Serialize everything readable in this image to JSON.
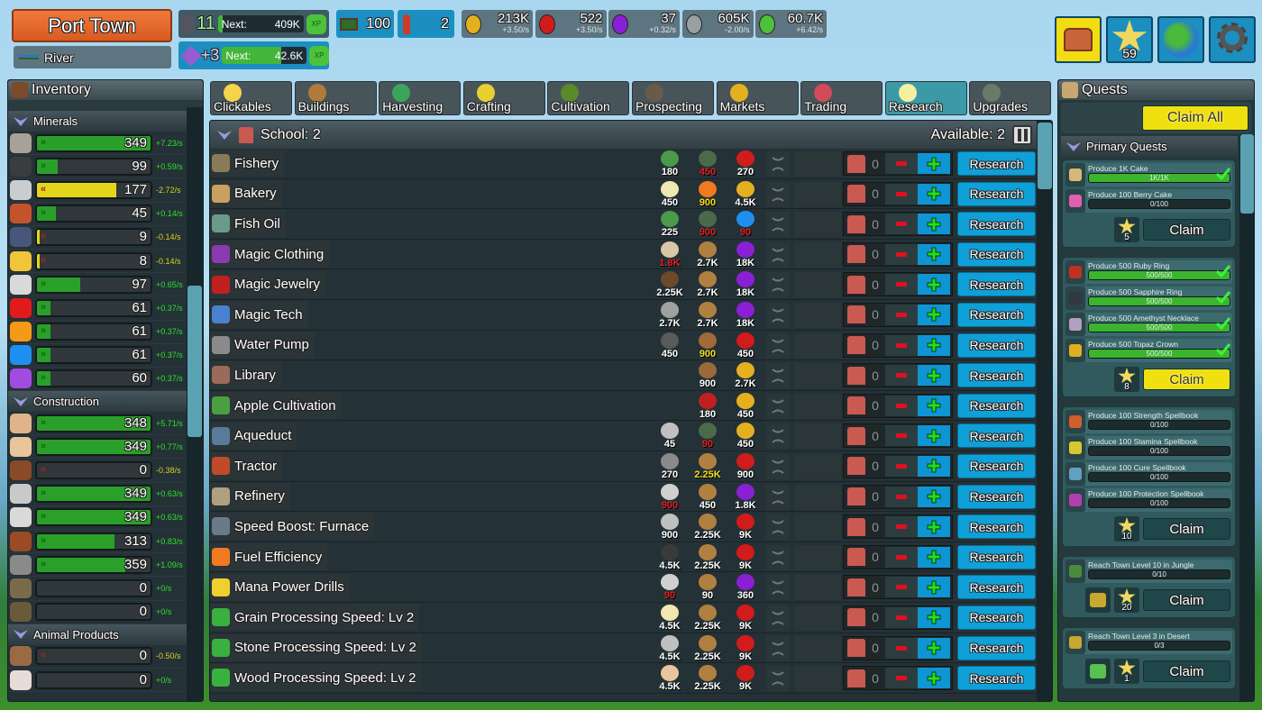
{
  "town": {
    "name": "Port Town",
    "biome": "River"
  },
  "level": {
    "value": "11",
    "next_label": "Next:",
    "next_value": "409K",
    "xp_label": "XP",
    "progress": 0.05
  },
  "prestige": {
    "value": "+3",
    "next_label": "Next:",
    "next_value": "42.6K",
    "xp_label": "XP",
    "progress": 0.7
  },
  "land": {
    "value": "100",
    "icon": "land-icon"
  },
  "population": {
    "value": "2",
    "icon": "worker-icon"
  },
  "currencies": [
    {
      "name": "gold",
      "value": "213K",
      "rate": "+3.50/s",
      "color": "#e5b020"
    },
    {
      "name": "ruby",
      "value": "522",
      "rate": "+3.50/s",
      "color": "#d21b1b"
    },
    {
      "name": "amethyst",
      "value": "37",
      "rate": "+0.32/s",
      "color": "#8a1fd6"
    },
    {
      "name": "silver",
      "value": "605K",
      "rate": "-2.00/s",
      "color": "#9aa0a2"
    },
    {
      "name": "xp",
      "value": "60.7K",
      "rate": "+6.42/s",
      "color": "#4cc23a"
    }
  ],
  "top_buttons": [
    {
      "name": "treasure-chest",
      "color": "#f2dc12"
    },
    {
      "name": "star",
      "badge": "59",
      "color": "#1c8fc0"
    },
    {
      "name": "world-map",
      "color": "#1c8fc0"
    },
    {
      "name": "settings-gear",
      "color": "#1c8fc0"
    }
  ],
  "inventory": {
    "title": "Inventory",
    "sections": [
      {
        "title": "Minerals",
        "items": [
          {
            "value": "349",
            "rate": "+7.23/s",
            "fill": 1.0,
            "trend": "up",
            "icon_color": "#a6a29a"
          },
          {
            "value": "99",
            "rate": "+0.59/s",
            "fill": 0.18,
            "trend": "up",
            "icon_color": "#3a3d40"
          },
          {
            "value": "177",
            "rate": "-2.72/s",
            "fill": 0.7,
            "trend": "down",
            "icon_color": "#c9cdd0"
          },
          {
            "value": "45",
            "rate": "+0.14/s",
            "fill": 0.17,
            "trend": "up",
            "icon_color": "#c4532c"
          },
          {
            "value": "9",
            "rate": "-0.14/s",
            "fill": 0.02,
            "trend": "down",
            "icon_color": "#47567a"
          },
          {
            "value": "8",
            "rate": "-0.14/s",
            "fill": 0.02,
            "trend": "down",
            "icon_color": "#f1c537"
          },
          {
            "value": "97",
            "rate": "+0.65/s",
            "fill": 0.38,
            "trend": "up",
            "icon_color": "#d9d9d9"
          },
          {
            "value": "61",
            "rate": "+0.37/s",
            "fill": 0.12,
            "trend": "up",
            "icon_color": "#e11b1b"
          },
          {
            "value": "61",
            "rate": "+0.37/s",
            "fill": 0.12,
            "trend": "up",
            "icon_color": "#f59a16"
          },
          {
            "value": "61",
            "rate": "+0.37/s",
            "fill": 0.12,
            "trend": "up",
            "icon_color": "#1e8ff0"
          },
          {
            "value": "60",
            "rate": "+0.37/s",
            "fill": 0.12,
            "trend": "up",
            "icon_color": "#a24be0"
          }
        ]
      },
      {
        "title": "Construction",
        "items": [
          {
            "value": "348",
            "rate": "+5.71/s",
            "fill": 1.0,
            "trend": "up",
            "icon_color": "#e0b48a"
          },
          {
            "value": "349",
            "rate": "+0.77/s",
            "fill": 1.0,
            "trend": "up",
            "icon_color": "#e8c59a"
          },
          {
            "value": "0",
            "rate": "-0.38/s",
            "fill": 0,
            "trend": "down",
            "icon_color": "#8a4a2a"
          },
          {
            "value": "349",
            "rate": "+0.63/s",
            "fill": 1.0,
            "trend": "up",
            "icon_color": "#c9c9c9"
          },
          {
            "value": "349",
            "rate": "+0.63/s",
            "fill": 1.0,
            "trend": "up",
            "icon_color": "#d9d9d9"
          },
          {
            "value": "313",
            "rate": "+0.83/s",
            "fill": 0.68,
            "trend": "up",
            "icon_color": "#9a4a25"
          },
          {
            "value": "359",
            "rate": "+1.09/s",
            "fill": 0.78,
            "trend": "up",
            "icon_color": "#8a8a8a"
          },
          {
            "value": "0",
            "rate": "+0/s",
            "fill": 0,
            "trend": "none",
            "icon_color": "#7a6a4a"
          },
          {
            "value": "0",
            "rate": "+0/s",
            "fill": 0,
            "trend": "none",
            "icon_color": "#6a5a3a"
          }
        ]
      },
      {
        "title": "Animal Products",
        "items": [
          {
            "value": "0",
            "rate": "-0.50/s",
            "fill": 0,
            "trend": "down",
            "icon_color": "#9a6a45"
          },
          {
            "value": "0",
            "rate": "+0/s",
            "fill": 0,
            "trend": "none",
            "icon_color": "#e8dcd8"
          }
        ]
      }
    ]
  },
  "tabs": [
    {
      "label": "Clickables",
      "color": "#f5d34a"
    },
    {
      "label": "Buildings",
      "color": "#b07a3a"
    },
    {
      "label": "Harvesting",
      "color": "#3aa55a"
    },
    {
      "label": "Crafting",
      "color": "#e8d030"
    },
    {
      "label": "Cultivation",
      "color": "#5a8a2a"
    },
    {
      "label": "Prospecting",
      "color": "#6a5a4a"
    },
    {
      "label": "Markets",
      "color": "#e5b020"
    },
    {
      "label": "Trading",
      "color": "#d04a5a"
    },
    {
      "label": "Research",
      "color": "#f5f0a0",
      "active": true
    },
    {
      "label": "Upgrades",
      "color": "#6a7a6a"
    }
  ],
  "school": {
    "title": "School: 2",
    "available": "Available: 2",
    "research_label": "Research",
    "count": "0"
  },
  "research": [
    {
      "name": "Fishery",
      "icon_color": "#8a7a5a",
      "costs": [
        [
          "180",
          "w",
          "#4a9a4a"
        ],
        [
          "450",
          "r",
          "#4a6a4a"
        ],
        [
          "270",
          "w",
          "#d21b1b"
        ]
      ]
    },
    {
      "name": "Bakery",
      "icon_color": "#c9a060",
      "costs": [
        [
          "450",
          "w",
          "#f0e8b0"
        ],
        [
          "900",
          "y",
          "#f07a20"
        ],
        [
          "4.5K",
          "w",
          "#e5b020"
        ]
      ]
    },
    {
      "name": "Fish Oil",
      "icon_color": "#6a9a8a",
      "costs": [
        [
          "225",
          "w",
          "#4a9a4a"
        ],
        [
          "900",
          "r",
          "#4a6a4a"
        ],
        [
          "90",
          "r",
          "#1e8ff0"
        ]
      ]
    },
    {
      "name": "Magic Clothing",
      "icon_color": "#8a3ab0",
      "costs": [
        [
          "1.8K",
          "r",
          "#d8c8a8"
        ],
        [
          "2.7K",
          "w",
          "#b08040"
        ],
        [
          "18K",
          "w",
          "#8a1fd6"
        ]
      ]
    },
    {
      "name": "Magic Jewelry",
      "icon_color": "#c02020",
      "costs": [
        [
          "2.25K",
          "w",
          "#6a4a2a"
        ],
        [
          "2.7K",
          "w",
          "#b08040"
        ],
        [
          "18K",
          "w",
          "#8a1fd6"
        ]
      ]
    },
    {
      "name": "Magic Tech",
      "icon_color": "#4a80d0",
      "costs": [
        [
          "2.7K",
          "w",
          "#a0a0a0"
        ],
        [
          "2.7K",
          "w",
          "#b08040"
        ],
        [
          "18K",
          "w",
          "#8a1fd6"
        ]
      ]
    },
    {
      "name": "Water Pump",
      "icon_color": "#8a8a8a",
      "costs": [
        [
          "450",
          "w",
          "#5a5a5a"
        ],
        [
          "900",
          "y",
          "#a06a3a"
        ],
        [
          "450",
          "w",
          "#d21b1b"
        ]
      ]
    },
    {
      "name": "Library",
      "icon_color": "#9a6a5a",
      "costs": [
        [
          "900",
          "w",
          "#9a6a3a"
        ],
        [
          "2.7K",
          "w",
          "#e5b020"
        ]
      ]
    },
    {
      "name": "Apple Cultivation",
      "icon_color": "#4aa040",
      "costs": [
        [
          "180",
          "w",
          "#c02020"
        ],
        [
          "450",
          "w",
          "#e5b020"
        ]
      ]
    },
    {
      "name": "Aqueduct",
      "icon_color": "#5a7a9a",
      "costs": [
        [
          "45",
          "w",
          "#c0c0c0"
        ],
        [
          "90",
          "r",
          "#4a6a4a"
        ],
        [
          "450",
          "w",
          "#e5b020"
        ]
      ]
    },
    {
      "name": "Tractor",
      "icon_color": "#c04a2a",
      "costs": [
        [
          "270",
          "w",
          "#8a8a8a"
        ],
        [
          "2.25K",
          "y",
          "#b08040"
        ],
        [
          "900",
          "w",
          "#d21b1b"
        ]
      ]
    },
    {
      "name": "Refinery",
      "icon_color": "#b0a080",
      "costs": [
        [
          "900",
          "r",
          "#d0d0d0"
        ],
        [
          "450",
          "w",
          "#b08040"
        ],
        [
          "1.8K",
          "w",
          "#8a1fd6"
        ]
      ]
    },
    {
      "name": "Speed Boost: Furnace",
      "icon_color": "#6a7a8a",
      "costs": [
        [
          "900",
          "w",
          "#c0c0c0"
        ],
        [
          "2.25K",
          "w",
          "#b08040"
        ],
        [
          "9K",
          "w",
          "#d21b1b"
        ]
      ]
    },
    {
      "name": "Fuel Efficiency",
      "icon_color": "#f07a20",
      "costs": [
        [
          "4.5K",
          "w",
          "#3a3a3a"
        ],
        [
          "2.25K",
          "w",
          "#b08040"
        ],
        [
          "9K",
          "w",
          "#d21b1b"
        ]
      ]
    },
    {
      "name": "Mana Power Drills",
      "icon_color": "#f0d030",
      "costs": [
        [
          "90",
          "r",
          "#d0d0d0"
        ],
        [
          "90",
          "w",
          "#b08040"
        ],
        [
          "360",
          "w",
          "#8a1fd6"
        ]
      ]
    },
    {
      "name": "Grain Processing Speed: Lv 2",
      "icon_color": "#3ab040",
      "costs": [
        [
          "4.5K",
          "w",
          "#f0e8b0"
        ],
        [
          "2.25K",
          "w",
          "#b08040"
        ],
        [
          "9K",
          "w",
          "#d21b1b"
        ]
      ]
    },
    {
      "name": "Stone Processing Speed: Lv 2",
      "icon_color": "#3ab040",
      "costs": [
        [
          "4.5K",
          "w",
          "#c0c0c0"
        ],
        [
          "2.25K",
          "w",
          "#b08040"
        ],
        [
          "9K",
          "w",
          "#d21b1b"
        ]
      ]
    },
    {
      "name": "Wood Processing Speed: Lv 2",
      "icon_color": "#3ab040",
      "costs": [
        [
          "4.5K",
          "w",
          "#e8c59a"
        ],
        [
          "2.25K",
          "w",
          "#b08040"
        ],
        [
          "9K",
          "w",
          "#d21b1b"
        ]
      ]
    }
  ],
  "quests": {
    "title": "Quests",
    "claim_all": "Claim All",
    "section": "Primary Quests",
    "claim_label": "Claim",
    "groups": [
      {
        "reward": "5",
        "claimable": false,
        "items": [
          {
            "text": "Produce 1K Cake",
            "progress": "1K/1K",
            "fill": 1,
            "done": true,
            "icon_color": "#d8b878"
          },
          {
            "text": "Produce 100 Berry Cake",
            "progress": "0/100",
            "fill": 0,
            "icon_color": "#e060b0"
          }
        ]
      },
      {
        "reward": "8",
        "claimable": true,
        "items": [
          {
            "text": "Produce 500 Ruby Ring",
            "progress": "500/500",
            "fill": 1,
            "done": true,
            "icon_color": "#c03020"
          },
          {
            "text": "Produce 500 Sapphire Ring",
            "progress": "500/500",
            "fill": 1,
            "done": true,
            "icon_color": "#303840"
          },
          {
            "text": "Produce 500 Amethyst Necklace",
            "progress": "500/500",
            "fill": 1,
            "done": true,
            "icon_color": "#b0a0c0"
          },
          {
            "text": "Produce 500 Topaz Crown",
            "progress": "500/500",
            "fill": 1,
            "done": true,
            "icon_color": "#e0b020"
          }
        ]
      },
      {
        "reward": "10",
        "claimable": false,
        "items": [
          {
            "text": "Produce 100 Strength Spellbook",
            "progress": "0/100",
            "fill": 0,
            "icon_color": "#d0602a"
          },
          {
            "text": "Produce 100 Stamina Spellbook",
            "progress": "0/100",
            "fill": 0,
            "icon_color": "#d8c830"
          },
          {
            "text": "Produce 100 Cure Spellbook",
            "progress": "0/100",
            "fill": 0,
            "icon_color": "#60a0c0"
          },
          {
            "text": "Produce 100 Protection Spellbook",
            "progress": "0/100",
            "fill": 0,
            "icon_color": "#b040b0"
          }
        ]
      },
      {
        "reward": "20",
        "extra_color": "#c8a830",
        "claimable": false,
        "items": [
          {
            "text": "Reach Town Level 10 in Jungle",
            "progress": "0/10",
            "fill": 0,
            "icon_color": "#4a8a3a"
          }
        ]
      },
      {
        "reward": "1",
        "extra_color": "#5ac050",
        "claimable": false,
        "items": [
          {
            "text": "Reach Town Level 3 in Desert",
            "progress": "0/3",
            "fill": 0,
            "icon_color": "#c8a830"
          }
        ]
      }
    ]
  }
}
